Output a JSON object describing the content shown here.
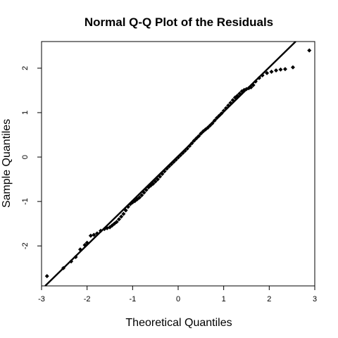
{
  "chart_data": {
    "type": "scatter",
    "title": "Normal Q-Q Plot of the Residuals",
    "xlabel": "Theoretical Quantiles",
    "ylabel": "Sample Quantiles",
    "xlim": [
      -3.0,
      3.0
    ],
    "ylim": [
      -2.9,
      2.6
    ],
    "x_ticks": [
      -3,
      -2,
      -1,
      0,
      1,
      2,
      3
    ],
    "y_ticks": [
      -2,
      -1,
      0,
      1,
      2
    ],
    "x_tick_labels": [
      "-3",
      "-2",
      "-1",
      "0",
      "1",
      "2",
      "3"
    ],
    "y_tick_labels": [
      "-2",
      "-1",
      "0",
      "1",
      "2"
    ],
    "grid": false,
    "reference_line": {
      "slope": 1.0,
      "intercept": 0.02
    },
    "points": [
      [
        -2.88,
        -2.68
      ],
      [
        -2.52,
        -2.5
      ],
      [
        -2.35,
        -2.35
      ],
      [
        -2.25,
        -2.25
      ],
      [
        -2.15,
        -2.08
      ],
      [
        -2.05,
        -1.98
      ],
      [
        -2.0,
        -1.93
      ],
      [
        -1.92,
        -1.77
      ],
      [
        -1.85,
        -1.75
      ],
      [
        -1.78,
        -1.72
      ],
      [
        -1.7,
        -1.66
      ],
      [
        -1.62,
        -1.62
      ],
      [
        -1.56,
        -1.6
      ],
      [
        -1.5,
        -1.58
      ],
      [
        -1.45,
        -1.54
      ],
      [
        -1.4,
        -1.5
      ],
      [
        -1.35,
        -1.46
      ],
      [
        -1.3,
        -1.4
      ],
      [
        -1.25,
        -1.34
      ],
      [
        -1.2,
        -1.28
      ],
      [
        -1.15,
        -1.2
      ],
      [
        -1.1,
        -1.12
      ],
      [
        -1.05,
        -1.06
      ],
      [
        -1.0,
        -1.02
      ],
      [
        -0.95,
        -0.99
      ],
      [
        -0.9,
        -0.95
      ],
      [
        -0.85,
        -0.91
      ],
      [
        -0.8,
        -0.86
      ],
      [
        -0.75,
        -0.8
      ],
      [
        -0.7,
        -0.74
      ],
      [
        -0.65,
        -0.68
      ],
      [
        -0.6,
        -0.64
      ],
      [
        -0.55,
        -0.6
      ],
      [
        -0.5,
        -0.55
      ],
      [
        -0.45,
        -0.5
      ],
      [
        -0.4,
        -0.44
      ],
      [
        -0.35,
        -0.38
      ],
      [
        -0.3,
        -0.32
      ],
      [
        -0.25,
        -0.26
      ],
      [
        -0.2,
        -0.21
      ],
      [
        -0.15,
        -0.16
      ],
      [
        -0.1,
        -0.11
      ],
      [
        -0.05,
        -0.06
      ],
      [
        0.0,
        -0.01
      ],
      [
        0.05,
        0.04
      ],
      [
        0.1,
        0.09
      ],
      [
        0.15,
        0.14
      ],
      [
        0.2,
        0.19
      ],
      [
        0.25,
        0.25
      ],
      [
        0.3,
        0.31
      ],
      [
        0.35,
        0.37
      ],
      [
        0.4,
        0.42
      ],
      [
        0.45,
        0.47
      ],
      [
        0.5,
        0.53
      ],
      [
        0.55,
        0.58
      ],
      [
        0.6,
        0.62
      ],
      [
        0.65,
        0.66
      ],
      [
        0.7,
        0.71
      ],
      [
        0.75,
        0.76
      ],
      [
        0.8,
        0.82
      ],
      [
        0.85,
        0.88
      ],
      [
        0.9,
        0.93
      ],
      [
        0.95,
        0.98
      ],
      [
        1.0,
        1.04
      ],
      [
        1.05,
        1.1
      ],
      [
        1.1,
        1.16
      ],
      [
        1.15,
        1.22
      ],
      [
        1.2,
        1.28
      ],
      [
        1.25,
        1.34
      ],
      [
        1.3,
        1.38
      ],
      [
        1.35,
        1.43
      ],
      [
        1.4,
        1.48
      ],
      [
        1.45,
        1.51
      ],
      [
        1.5,
        1.53
      ],
      [
        1.55,
        1.55
      ],
      [
        1.6,
        1.57
      ],
      [
        1.65,
        1.62
      ],
      [
        1.7,
        1.7
      ],
      [
        1.78,
        1.78
      ],
      [
        1.85,
        1.84
      ],
      [
        1.95,
        1.89
      ],
      [
        2.05,
        1.92
      ],
      [
        2.15,
        1.95
      ],
      [
        2.25,
        1.97
      ],
      [
        2.35,
        1.98
      ],
      [
        2.52,
        2.02
      ],
      [
        2.88,
        2.4
      ]
    ]
  }
}
